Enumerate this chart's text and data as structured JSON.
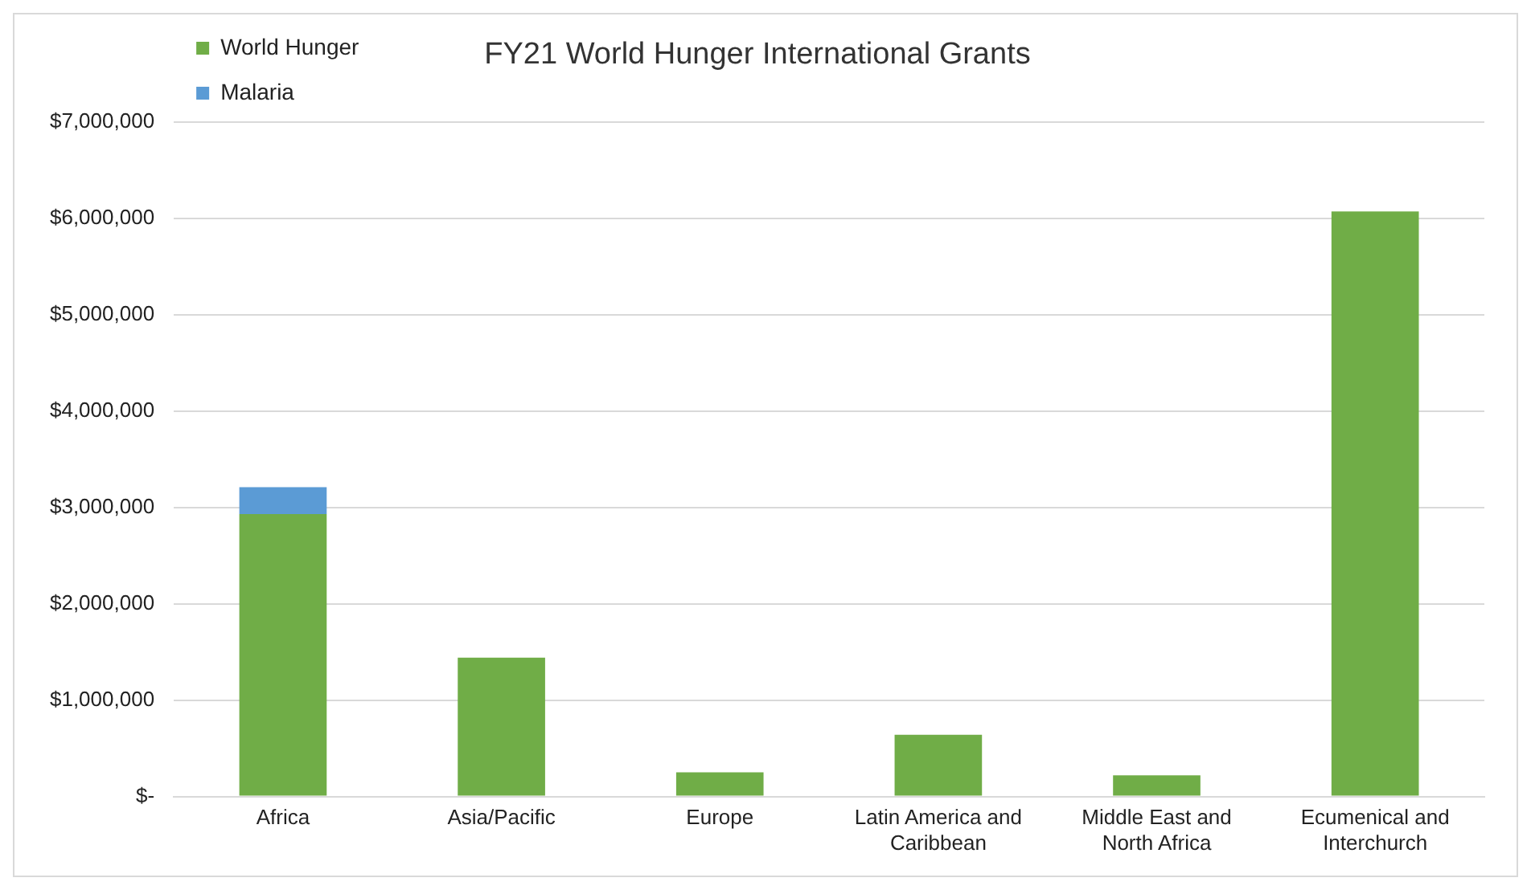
{
  "chart_data": {
    "type": "bar",
    "title": "FY21 World Hunger International Grants",
    "stacked": true,
    "categories": [
      "Africa",
      "Asia/Pacific",
      "Europe",
      "Latin America and Caribbean",
      "Middle East and North Africa",
      "Ecumenical and Interchurch"
    ],
    "series": [
      {
        "name": "World Hunger",
        "color": "#70ad47",
        "values": [
          2930000,
          1440000,
          250000,
          640000,
          220000,
          6070000
        ]
      },
      {
        "name": "Malaria",
        "color": "#5b9bd5",
        "values": [
          280000,
          null,
          null,
          null,
          null,
          null
        ]
      }
    ],
    "ylim": [
      0,
      7000000
    ],
    "yticks": [
      {
        "value": 0,
        "label": "$-"
      },
      {
        "value": 1000000,
        "label": "$1,000,000"
      },
      {
        "value": 2000000,
        "label": "$2,000,000"
      },
      {
        "value": 3000000,
        "label": "$3,000,000"
      },
      {
        "value": 4000000,
        "label": "$4,000,000"
      },
      {
        "value": 5000000,
        "label": "$5,000,000"
      },
      {
        "value": 6000000,
        "label": "$6,000,000"
      },
      {
        "value": 7000000,
        "label": "$7,000,000"
      }
    ],
    "grid": "y",
    "legend": "top left"
  }
}
